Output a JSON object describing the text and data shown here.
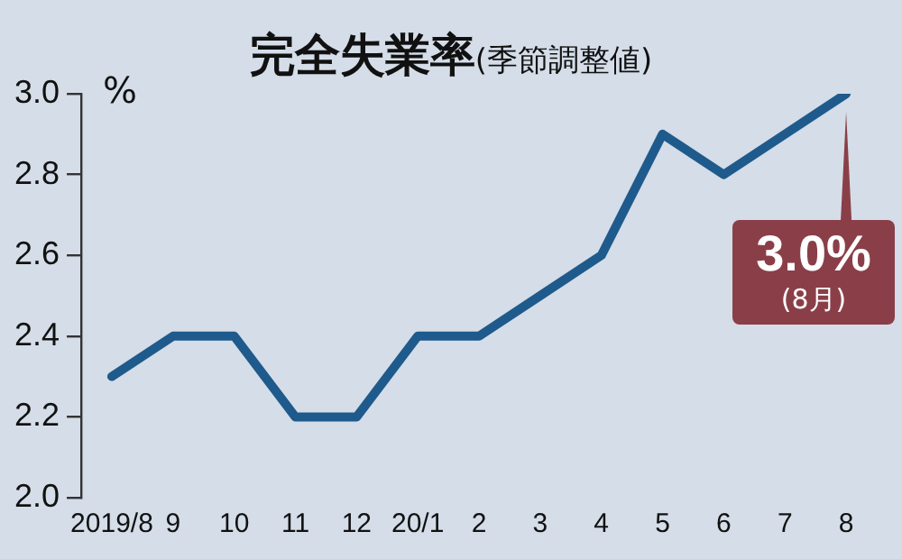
{
  "chart_data": {
    "type": "line",
    "title": "完全失業率",
    "subtitle": "(季節調整値)",
    "ylabel": "%",
    "categories": [
      "2019/8",
      "9",
      "10",
      "11",
      "12",
      "20/1",
      "2",
      "3",
      "4",
      "5",
      "6",
      "7",
      "8"
    ],
    "series": [
      {
        "color": "#1f5a8c",
        "values": [
          2.3,
          2.4,
          2.4,
          2.2,
          2.2,
          2.4,
          2.4,
          2.5,
          2.6,
          2.9,
          2.8,
          2.9,
          3.0
        ]
      }
    ],
    "ylim": [
      2.0,
      3.0
    ],
    "yticks": [
      {
        "value": 2.0,
        "label": "2.0"
      },
      {
        "value": 2.2,
        "label": "2.2"
      },
      {
        "value": 2.4,
        "label": "2.4"
      },
      {
        "value": 2.6,
        "label": "2.6"
      },
      {
        "value": 2.8,
        "label": "2.8"
      },
      {
        "value": 3.0,
        "label": "3.0"
      }
    ],
    "annotations": [
      {
        "text": "3.0%\n(8月)",
        "x": "8",
        "y": 3.0
      }
    ],
    "grid": false,
    "legend": false,
    "marker": "none",
    "line_style": "solid"
  }
}
